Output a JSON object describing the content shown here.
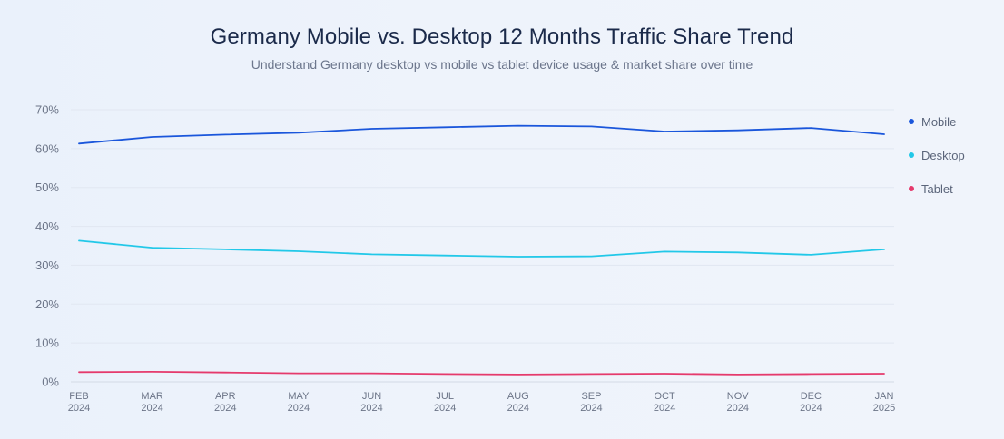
{
  "header": {
    "title": "Germany Mobile vs. Desktop 12 Months Traffic Share Trend",
    "subtitle": "Understand Germany desktop vs mobile vs tablet device usage & market share over time"
  },
  "legend": [
    {
      "label": "Mobile",
      "color": "#1a56db"
    },
    {
      "label": "Desktop",
      "color": "#22c8e8"
    },
    {
      "label": "Tablet",
      "color": "#e53a6c"
    }
  ],
  "chart_data": {
    "type": "line",
    "title": "Germany Mobile vs. Desktop 12 Months Traffic Share Trend",
    "subtitle": "Understand Germany desktop vs mobile vs tablet device usage & market share over time",
    "xlabel": "",
    "ylabel": "",
    "x": [
      [
        "FEB",
        "2024"
      ],
      [
        "MAR",
        "2024"
      ],
      [
        "APR",
        "2024"
      ],
      [
        "MAY",
        "2024"
      ],
      [
        "JUN",
        "2024"
      ],
      [
        "JUL",
        "2024"
      ],
      [
        "AUG",
        "2024"
      ],
      [
        "SEP",
        "2024"
      ],
      [
        "OCT",
        "2024"
      ],
      [
        "NOV",
        "2024"
      ],
      [
        "DEC",
        "2024"
      ],
      [
        "JAN",
        "2025"
      ]
    ],
    "ylim": [
      0,
      70
    ],
    "yticks": [
      "0%",
      "10%",
      "20%",
      "30%",
      "40%",
      "50%",
      "60%",
      "70%"
    ],
    "grid": true,
    "legend_position": "right",
    "series": [
      {
        "name": "Mobile",
        "color": "#1a56db",
        "values": [
          61.3,
          63.0,
          63.6,
          64.1,
          65.1,
          65.5,
          65.9,
          65.7,
          64.4,
          64.7,
          65.3,
          63.7
        ]
      },
      {
        "name": "Desktop",
        "color": "#22c8e8",
        "values": [
          36.3,
          34.5,
          34.1,
          33.6,
          32.8,
          32.5,
          32.2,
          32.3,
          33.5,
          33.3,
          32.7,
          34.1
        ]
      },
      {
        "name": "Tablet",
        "color": "#e53a6c",
        "values": [
          2.5,
          2.6,
          2.4,
          2.2,
          2.2,
          2.0,
          1.9,
          2.0,
          2.1,
          1.9,
          2.0,
          2.1
        ]
      }
    ]
  }
}
